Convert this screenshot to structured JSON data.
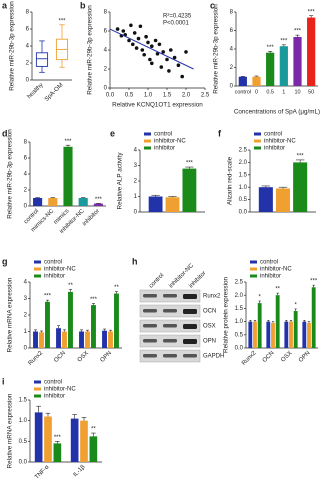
{
  "chart_data": [
    {
      "panel": "a",
      "type": "box",
      "ylabel": "Relative miR-29b-3p expression",
      "categories": [
        "healthy",
        "SpA-OM"
      ],
      "boxes": [
        {
          "min": 0.9,
          "q1": 1.6,
          "median": 2.5,
          "q3": 3.2,
          "max": 4.6
        },
        {
          "min": 1.5,
          "q1": 2.4,
          "median": 3.6,
          "q3": 4.8,
          "max": 6.5
        }
      ],
      "colors": [
        "#2233aa",
        "#f0a030"
      ],
      "annotations": [
        null,
        "***"
      ],
      "ylim": [
        0,
        8
      ],
      "yticks": [
        0,
        2,
        4,
        6,
        8
      ]
    },
    {
      "panel": "b",
      "type": "scatter",
      "xlabel": "Relative KCNQ1OT1 expression",
      "ylabel": "Relative miR-29b-3p expression",
      "stats": [
        "R²=0.4235",
        "P<0.0001"
      ],
      "x": [
        0.2,
        0.3,
        0.35,
        0.4,
        0.5,
        0.55,
        0.6,
        0.65,
        0.7,
        0.75,
        0.8,
        0.85,
        0.9,
        0.95,
        1.0,
        1.05,
        1.1,
        1.1,
        1.2,
        1.25,
        1.3,
        1.35,
        1.4,
        1.5,
        1.55,
        1.6,
        1.7,
        1.8,
        1.9,
        2.0
      ],
      "y": [
        6.2,
        5.5,
        6.0,
        5.6,
        5.0,
        6.6,
        4.6,
        5.8,
        4.2,
        5.2,
        6.5,
        4.0,
        3.5,
        5.4,
        4.8,
        3.0,
        4.4,
        2.6,
        5.0,
        3.6,
        4.6,
        2.2,
        3.8,
        3.0,
        1.8,
        4.0,
        3.2,
        2.4,
        1.2,
        3.8
      ],
      "fit_x": [
        0,
        2.2
      ],
      "fit_y": [
        6.2,
        2.0
      ],
      "color": "#2233aa",
      "xlim": [
        0,
        2.5
      ],
      "xticks": [
        {
          "value": 0,
          "label": "0.0"
        },
        {
          "value": 0.5,
          "label": "0.5"
        },
        {
          "value": 1,
          "label": "1.0"
        },
        {
          "value": 1.5,
          "label": "1.5"
        },
        {
          "value": 2,
          "label": "2.0"
        },
        {
          "value": 2.5,
          "label": "2.5"
        }
      ],
      "ylim": [
        0,
        8
      ],
      "yticks": [
        0,
        2,
        4,
        6,
        8
      ]
    },
    {
      "panel": "c",
      "type": "bar",
      "xlabel": "Concentrations of SpA (μg/mL)",
      "ylabel": "Relative miR-29b-3p expression",
      "categories": [
        "control",
        "0",
        "0.5",
        "1",
        "10",
        "50"
      ],
      "values": [
        1,
        1,
        3.6,
        4.3,
        5.3,
        7.4
      ],
      "errors": [
        0.05,
        0.08,
        0.15,
        0.15,
        0.2,
        0.2
      ],
      "colors": [
        "#2233aa",
        "#f0a030",
        "#1a8a1a",
        "#1a9a9a",
        "#7a2aa8",
        "#e8231a"
      ],
      "annotations": [
        null,
        null,
        "***",
        "***",
        "***",
        "***"
      ],
      "ylim": [
        0,
        8
      ],
      "yticks": [
        0,
        2,
        4,
        6,
        8
      ]
    },
    {
      "panel": "d",
      "type": "bar",
      "ylabel": "Relative miR-29b-3p expression",
      "categories": [
        "control",
        "mimics-NC",
        "mimics",
        "inhibitor-NC",
        "inhibitor"
      ],
      "values": [
        1,
        1,
        7.4,
        1,
        0.3
      ],
      "errors": [
        0.05,
        0.05,
        0.2,
        0.05,
        0.03
      ],
      "colors": [
        "#2233aa",
        "#f0a030",
        "#1a8a1a",
        "#1a9a9a",
        "#7a2aa8"
      ],
      "annotations": [
        null,
        null,
        "***",
        null,
        "***"
      ],
      "ylim": [
        0,
        8
      ],
      "yticks": [
        0,
        2,
        4,
        6,
        8
      ]
    },
    {
      "panel": "e",
      "type": "grouped",
      "ylabel": "Relative ALP activity",
      "series": [
        {
          "name": "control",
          "color": "#2233aa",
          "values": [
            1.0
          ],
          "errors": [
            0.08
          ],
          "annotations": [
            null
          ]
        },
        {
          "name": "inhibitor-NC",
          "color": "#f0a030",
          "values": [
            0.95
          ],
          "errors": [
            0.05
          ],
          "annotations": [
            null
          ]
        },
        {
          "name": "inhibitor",
          "color": "#1a8a1a",
          "values": [
            2.8
          ],
          "errors": [
            0.1
          ],
          "annotations": [
            "***"
          ]
        }
      ],
      "ylim": [
        0,
        4
      ],
      "yticks": [
        0,
        1,
        2,
        3,
        4
      ]
    },
    {
      "panel": "f",
      "type": "grouped",
      "ylabel": "Alizarin red-scale",
      "series": [
        {
          "name": "control",
          "color": "#2233aa",
          "values": [
            1.0
          ],
          "errors": [
            0.05
          ],
          "annotations": [
            null
          ]
        },
        {
          "name": "inhibitor-NC",
          "color": "#f0a030",
          "values": [
            0.95
          ],
          "errors": [
            0.05
          ],
          "annotations": [
            null
          ]
        },
        {
          "name": "inhibitor",
          "color": "#1a8a1a",
          "values": [
            2.0
          ],
          "errors": [
            0.1
          ],
          "annotations": [
            "***"
          ]
        }
      ],
      "ylim": [
        0,
        2.5
      ],
      "yticks": [
        {
          "value": 0,
          "label": "0.0"
        },
        {
          "value": 0.5,
          "label": "0.5"
        },
        {
          "value": 1,
          "label": "1.0"
        },
        {
          "value": 1.5,
          "label": "1.5"
        },
        {
          "value": 2,
          "label": "2.0"
        },
        {
          "value": 2.5,
          "label": "2.5"
        }
      ]
    },
    {
      "panel": "g",
      "type": "grouped",
      "ylabel": "Relative mRNA expression",
      "categories": [
        "Runx2",
        "OCN",
        "OSX",
        "OPN"
      ],
      "series": [
        {
          "name": "control",
          "color": "#2233aa",
          "values": [
            1.0,
            1.2,
            1.0,
            1.05
          ],
          "errors": [
            0.1,
            0.15,
            0.1,
            0.1
          ],
          "annotations": [
            null,
            null,
            null,
            null
          ]
        },
        {
          "name": "inhibitor-NC",
          "color": "#f0a030",
          "values": [
            0.95,
            1.0,
            1.0,
            1.0
          ],
          "errors": [
            0.08,
            0.1,
            0.08,
            0.08
          ],
          "annotations": [
            null,
            null,
            null,
            null
          ]
        },
        {
          "name": "inhibitor",
          "color": "#1a8a1a",
          "values": [
            2.8,
            3.4,
            2.6,
            3.3
          ],
          "errors": [
            0.1,
            0.15,
            0.1,
            0.12
          ],
          "annotations": [
            "***",
            "**",
            "***",
            "**"
          ]
        }
      ],
      "ylim": [
        0,
        4
      ],
      "yticks": [
        0,
        1,
        2,
        3,
        4
      ]
    },
    {
      "panel": "h",
      "type": "grouped",
      "ylabel": "Relative protein expression",
      "categories": [
        "Runx2",
        "OCN",
        "OSX",
        "OPN"
      ],
      "blot_lanes": [
        "control",
        "inhibitor-NC",
        "inhibitor"
      ],
      "blot_rows": [
        "Runx2",
        "OCN",
        "OSX",
        "OPN",
        "GAPDH"
      ],
      "series": [
        {
          "name": "control",
          "color": "#2233aa",
          "values": [
            1,
            1,
            1,
            1
          ],
          "errors": [
            0.05,
            0.05,
            0.05,
            0.05
          ],
          "annotations": [
            null,
            null,
            null,
            null
          ]
        },
        {
          "name": "inhibitor-NC",
          "color": "#f0a030",
          "values": [
            1.0,
            0.95,
            1.0,
            0.95
          ],
          "errors": [
            0.05,
            0.05,
            0.05,
            0.05
          ],
          "annotations": [
            null,
            null,
            null,
            null
          ]
        },
        {
          "name": "inhibitor",
          "color": "#1a8a1a",
          "values": [
            1.7,
            2.0,
            1.4,
            2.3
          ],
          "errors": [
            0.08,
            0.08,
            0.08,
            0.08
          ],
          "annotations": [
            "*",
            "**",
            "*",
            "***"
          ]
        }
      ],
      "ylim": [
        0,
        2.5
      ],
      "yticks": [
        {
          "value": 0,
          "label": "0.0"
        },
        {
          "value": 0.5,
          "label": "0.5"
        },
        {
          "value": 1,
          "label": "1.0"
        },
        {
          "value": 1.5,
          "label": "1.5"
        },
        {
          "value": 2,
          "label": "2.0"
        },
        {
          "value": 2.5,
          "label": "2.5"
        }
      ]
    },
    {
      "panel": "i",
      "type": "grouped",
      "ylabel": "Relative mRNA expression",
      "categories": [
        "TNF-α",
        "IL-1β"
      ],
      "series": [
        {
          "name": "control",
          "color": "#2233aa",
          "values": [
            1.2,
            1.05
          ],
          "errors": [
            0.15,
            0.1
          ],
          "annotations": [
            null,
            null
          ]
        },
        {
          "name": "inhibitor-NC",
          "color": "#f0a030",
          "values": [
            1.1,
            1.0
          ],
          "errors": [
            0.08,
            0.08
          ],
          "annotations": [
            null,
            null
          ]
        },
        {
          "name": "inhibitor",
          "color": "#1a8a1a",
          "values": [
            0.45,
            0.62
          ],
          "errors": [
            0.05,
            0.08
          ],
          "annotations": [
            "***",
            "**"
          ]
        }
      ],
      "ylim": [
        0,
        1.5
      ],
      "yticks": [
        {
          "value": 0,
          "label": "0.0"
        },
        {
          "value": 0.5,
          "label": "0.5"
        },
        {
          "value": 1,
          "label": "1.0"
        },
        {
          "value": 1.5,
          "label": "1.5"
        }
      ]
    }
  ]
}
